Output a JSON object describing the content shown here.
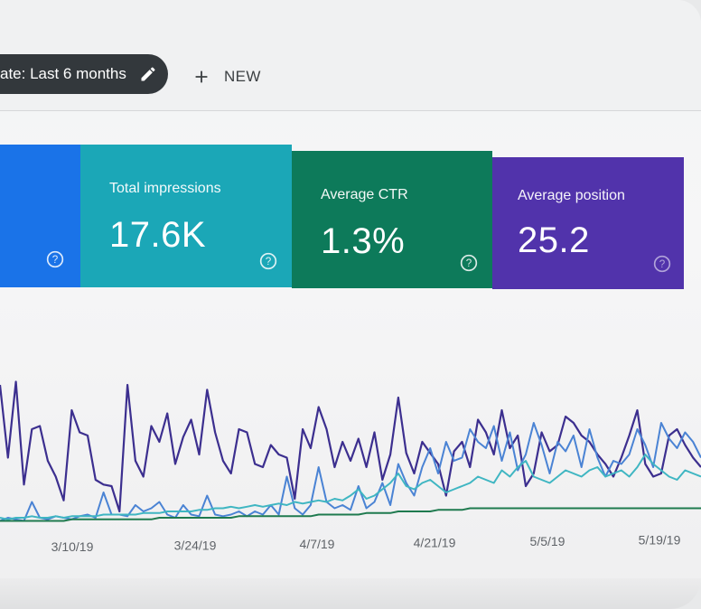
{
  "toolbar": {
    "date_filter_label": "ate: Last 6 months",
    "new_label": "NEW"
  },
  "cards": [
    {
      "title": "",
      "value": "",
      "color": "#1a73e8"
    },
    {
      "title": "Total impressions",
      "value": "17.6K",
      "color": "#1ba7b7"
    },
    {
      "title": "Average CTR",
      "value": "1.3%",
      "color": "#0d7a5a"
    },
    {
      "title": "Average position",
      "value": "25.2",
      "color": "#5133ab"
    }
  ],
  "chart_data": {
    "type": "line",
    "x_ticks": [
      "3/10/19",
      "3/24/19",
      "4/7/19",
      "4/21/19",
      "5/5/19",
      "5/19/19"
    ],
    "ylim": [
      0,
      100
    ],
    "grid": false,
    "series": [
      {
        "color": "#3c2f8f",
        "values": [
          88,
          42,
          90,
          25,
          60,
          62,
          40,
          30,
          15,
          72,
          58,
          56,
          28,
          25,
          24,
          8,
          88,
          40,
          30,
          62,
          52,
          70,
          38,
          55,
          66,
          44,
          85,
          58,
          40,
          32,
          60,
          58,
          38,
          36,
          50,
          44,
          42,
          16,
          60,
          48,
          74,
          60,
          36,
          52,
          40,
          54,
          36,
          58,
          28,
          44,
          80,
          45,
          32,
          52,
          45,
          38,
          18,
          46,
          52,
          36,
          66,
          58,
          44,
          72,
          48,
          56,
          24,
          32,
          58,
          46,
          50,
          68,
          64,
          56,
          52,
          44,
          38,
          30,
          42,
          56,
          72,
          38,
          30,
          32,
          56,
          60,
          50,
          42,
          36
        ]
      },
      {
        "color": "#4a83d4",
        "values": [
          2,
          4,
          3,
          2,
          14,
          4,
          3,
          5,
          4,
          3,
          5,
          6,
          4,
          20,
          6,
          6,
          5,
          12,
          8,
          10,
          14,
          6,
          4,
          12,
          6,
          5,
          18,
          6,
          5,
          6,
          8,
          5,
          8,
          6,
          12,
          6,
          30,
          10,
          6,
          12,
          36,
          14,
          10,
          12,
          9,
          24,
          10,
          14,
          26,
          12,
          38,
          26,
          18,
          36,
          48,
          32,
          52,
          40,
          42,
          60,
          52,
          48,
          62,
          40,
          58,
          34,
          44,
          64,
          50,
          32,
          52,
          46,
          56,
          36,
          60,
          42,
          30,
          40,
          38,
          44,
          60,
          50,
          36,
          64,
          54,
          48,
          58,
          52,
          42
        ]
      },
      {
        "color": "#3fb6c2",
        "values": [
          4,
          3,
          4,
          4,
          5,
          4,
          4,
          5,
          4,
          5,
          5,
          5,
          5,
          6,
          6,
          6,
          6,
          6,
          7,
          7,
          7,
          8,
          8,
          8,
          8,
          9,
          9,
          10,
          10,
          11,
          10,
          11,
          12,
          11,
          12,
          13,
          12,
          14,
          13,
          14,
          15,
          14,
          16,
          15,
          18,
          22,
          16,
          18,
          22,
          26,
          32,
          24,
          22,
          26,
          28,
          24,
          20,
          22,
          24,
          26,
          30,
          28,
          26,
          34,
          30,
          36,
          40,
          30,
          28,
          26,
          30,
          34,
          32,
          30,
          34,
          36,
          30,
          32,
          34,
          30,
          36,
          44,
          38,
          34,
          30,
          28,
          34,
          32,
          30
        ]
      },
      {
        "color": "#1f7a4f",
        "values": [
          2,
          2,
          2,
          2,
          2,
          2,
          2,
          2,
          2,
          3,
          3,
          3,
          3,
          3,
          3,
          3,
          3,
          3,
          3,
          3,
          4,
          4,
          4,
          4,
          4,
          4,
          4,
          4,
          4,
          4,
          5,
          5,
          5,
          5,
          5,
          5,
          5,
          5,
          5,
          5,
          6,
          6,
          6,
          6,
          6,
          6,
          7,
          7,
          7,
          7,
          8,
          8,
          8,
          8,
          8,
          9,
          9,
          9,
          9,
          10,
          10,
          10,
          10,
          10,
          10,
          10,
          10,
          10,
          10,
          10,
          10,
          10,
          10,
          10,
          10,
          10,
          10,
          10,
          10,
          10,
          10,
          10,
          10,
          10,
          10,
          10,
          10,
          10,
          10
        ]
      }
    ]
  }
}
